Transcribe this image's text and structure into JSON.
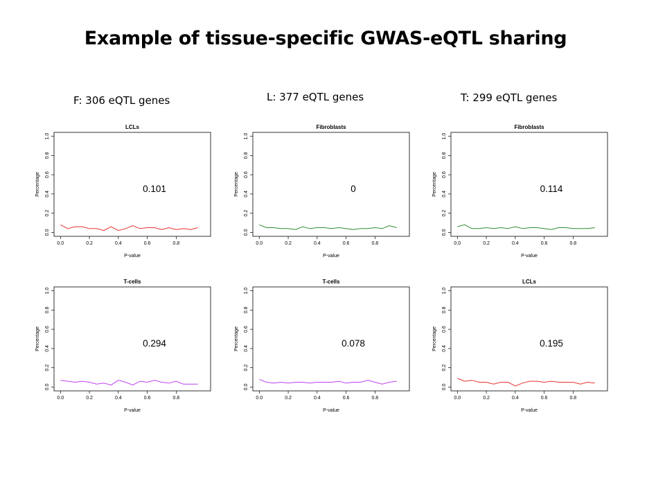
{
  "slide": {
    "title": "Example of tissue-specific GWAS-eQTL sharing",
    "columns": [
      {
        "label": "F: 306 eQTL genes"
      },
      {
        "label": "L: 377 eQTL genes"
      },
      {
        "label": "T: 299 eQTL genes"
      }
    ]
  },
  "colors": {
    "lcl": "#e8322e",
    "fibroblast": "#2e8b2e",
    "tcell": "#c040f0"
  },
  "chart_data": [
    {
      "type": "line",
      "title": "LCLs",
      "xlabel": "P-value",
      "ylabel": "Percentage",
      "xlim": [
        0,
        1
      ],
      "ylim": [
        0,
        1
      ],
      "xticks": [
        "0.0",
        "0.2",
        "0.4",
        "0.6",
        "0.8"
      ],
      "yticks": [
        "0.0",
        "0.2",
        "0.4",
        "0.6",
        "0.8",
        "1.0"
      ],
      "annotation": "0.101",
      "color": "#e8322e",
      "x": [
        0,
        0.05,
        0.1,
        0.15,
        0.2,
        0.25,
        0.3,
        0.35,
        0.4,
        0.45,
        0.5,
        0.55,
        0.6,
        0.65,
        0.7,
        0.75,
        0.8,
        0.85,
        0.9,
        0.95
      ],
      "y": [
        0.08,
        0.04,
        0.06,
        0.06,
        0.04,
        0.04,
        0.02,
        0.06,
        0.02,
        0.04,
        0.07,
        0.04,
        0.05,
        0.05,
        0.03,
        0.05,
        0.03,
        0.04,
        0.03,
        0.05
      ]
    },
    {
      "type": "line",
      "title": "Fibroblasts",
      "xlabel": "P-value",
      "ylabel": "Percentage",
      "xlim": [
        0,
        1
      ],
      "ylim": [
        0,
        1
      ],
      "xticks": [
        "0.0",
        "0.2",
        "0.4",
        "0.6",
        "0.8"
      ],
      "yticks": [
        "0.0",
        "0.2",
        "0.4",
        "0.6",
        "0.8",
        "1.0"
      ],
      "annotation": "0",
      "color": "#2e8b2e",
      "x": [
        0,
        0.05,
        0.1,
        0.15,
        0.2,
        0.25,
        0.3,
        0.35,
        0.4,
        0.45,
        0.5,
        0.55,
        0.6,
        0.65,
        0.7,
        0.75,
        0.8,
        0.85,
        0.9,
        0.95
      ],
      "y": [
        0.08,
        0.05,
        0.05,
        0.04,
        0.04,
        0.03,
        0.06,
        0.04,
        0.05,
        0.05,
        0.04,
        0.05,
        0.04,
        0.03,
        0.04,
        0.04,
        0.05,
        0.04,
        0.07,
        0.05
      ]
    },
    {
      "type": "line",
      "title": "Fibroblasts",
      "xlabel": "P-value",
      "ylabel": "Percentage",
      "xlim": [
        0,
        1
      ],
      "ylim": [
        0,
        1
      ],
      "xticks": [
        "0.0",
        "0.2",
        "0.4",
        "0.6",
        "0.8"
      ],
      "yticks": [
        "0.0",
        "0.2",
        "0.4",
        "0.6",
        "0.8",
        "1.0"
      ],
      "annotation": "0.114",
      "color": "#2e8b2e",
      "x": [
        0,
        0.05,
        0.1,
        0.15,
        0.2,
        0.25,
        0.3,
        0.35,
        0.4,
        0.45,
        0.5,
        0.55,
        0.6,
        0.65,
        0.7,
        0.75,
        0.8,
        0.85,
        0.9,
        0.95
      ],
      "y": [
        0.06,
        0.08,
        0.04,
        0.04,
        0.05,
        0.04,
        0.05,
        0.04,
        0.06,
        0.04,
        0.05,
        0.05,
        0.04,
        0.03,
        0.05,
        0.05,
        0.04,
        0.04,
        0.04,
        0.05
      ]
    },
    {
      "type": "line",
      "title": "T-cells",
      "xlabel": "P-value",
      "ylabel": "Percentage",
      "xlim": [
        0,
        1
      ],
      "ylim": [
        0,
        1
      ],
      "xticks": [
        "0.0",
        "0.2",
        "0.4",
        "0.6",
        "0.8"
      ],
      "yticks": [
        "0.0",
        "0.2",
        "0.4",
        "0.6",
        "0.8",
        "1.0"
      ],
      "annotation": "0.294",
      "color": "#c040f0",
      "x": [
        0,
        0.05,
        0.1,
        0.15,
        0.2,
        0.25,
        0.3,
        0.35,
        0.4,
        0.45,
        0.5,
        0.55,
        0.6,
        0.65,
        0.7,
        0.75,
        0.8,
        0.85,
        0.9,
        0.95
      ],
      "y": [
        0.07,
        0.06,
        0.05,
        0.06,
        0.05,
        0.03,
        0.04,
        0.02,
        0.07,
        0.05,
        0.02,
        0.06,
        0.05,
        0.07,
        0.05,
        0.04,
        0.06,
        0.03,
        0.03,
        0.03
      ]
    },
    {
      "type": "line",
      "title": "T-cells",
      "xlabel": "P-value",
      "ylabel": "Percentage",
      "xlim": [
        0,
        1
      ],
      "ylim": [
        0,
        1
      ],
      "xticks": [
        "0.0",
        "0.2",
        "0.4",
        "0.6",
        "0.8"
      ],
      "yticks": [
        "0.0",
        "0.2",
        "0.4",
        "0.6",
        "0.8",
        "1.0"
      ],
      "annotation": "0.078",
      "color": "#c040f0",
      "x": [
        0,
        0.05,
        0.1,
        0.15,
        0.2,
        0.25,
        0.3,
        0.35,
        0.4,
        0.45,
        0.5,
        0.55,
        0.6,
        0.65,
        0.7,
        0.75,
        0.8,
        0.85,
        0.9,
        0.95
      ],
      "y": [
        0.08,
        0.05,
        0.04,
        0.05,
        0.04,
        0.05,
        0.05,
        0.04,
        0.05,
        0.05,
        0.05,
        0.06,
        0.04,
        0.05,
        0.05,
        0.07,
        0.05,
        0.03,
        0.05,
        0.06
      ]
    },
    {
      "type": "line",
      "title": "LCLs",
      "xlabel": "P-value",
      "ylabel": "Percentage",
      "xlim": [
        0,
        1
      ],
      "ylim": [
        0,
        1
      ],
      "xticks": [
        "0.0",
        "0.2",
        "0.4",
        "0.6",
        "0.8"
      ],
      "yticks": [
        "0.0",
        "0.2",
        "0.4",
        "0.6",
        "0.8",
        "1.0"
      ],
      "annotation": "0.195",
      "color": "#e8322e",
      "x": [
        0,
        0.05,
        0.1,
        0.15,
        0.2,
        0.25,
        0.3,
        0.35,
        0.4,
        0.45,
        0.5,
        0.55,
        0.6,
        0.65,
        0.7,
        0.75,
        0.8,
        0.85,
        0.9,
        0.95
      ],
      "y": [
        0.09,
        0.06,
        0.07,
        0.05,
        0.05,
        0.03,
        0.05,
        0.05,
        0.01,
        0.04,
        0.06,
        0.06,
        0.05,
        0.06,
        0.05,
        0.05,
        0.05,
        0.03,
        0.05,
        0.04
      ]
    }
  ]
}
